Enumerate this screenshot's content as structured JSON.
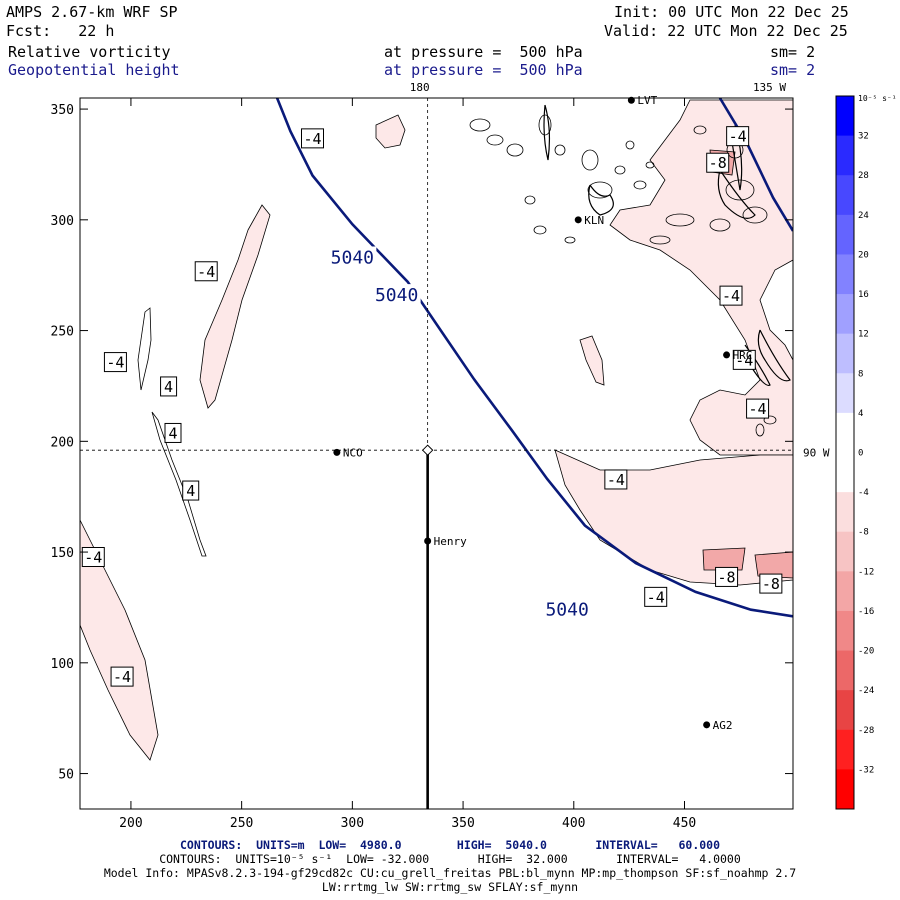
{
  "header": {
    "model": "AMPS 2.67-km WRF SP",
    "init": "Init: 00 UTC Mon 22 Dec 25",
    "forecast": "Fcst:   22 h",
    "valid": "Valid: 22 UTC Mon 22 Dec 25",
    "field1": "Relative vorticity",
    "field1_level": "at pressure =  500 hPa",
    "field1_sm": "sm= 2",
    "field2": "Geopotential height",
    "field2_level": "at pressure =  500 hPa",
    "field2_sm": "sm= 2"
  },
  "chart_data": {
    "type": "contour-map",
    "x_ticks": [
      200,
      250,
      300,
      350,
      400,
      450
    ],
    "xlim": [
      177,
      499
    ],
    "y_ticks": [
      50,
      100,
      150,
      200,
      250,
      300,
      350
    ],
    "ylim": [
      34,
      355
    ],
    "meridians": [
      {
        "label": "180",
        "x": 334
      },
      {
        "label": "135 W",
        "x": 492
      },
      {
        "label": "90 W",
        "x": 499,
        "y": 195
      }
    ],
    "crosshair": {
      "x": 334,
      "y": 196
    },
    "stations": [
      {
        "name": "NCO",
        "x": 293,
        "y": 195
      },
      {
        "name": "Henry",
        "x": 334,
        "y": 155
      },
      {
        "name": "KLN",
        "x": 402,
        "y": 300
      },
      {
        "name": "AG2",
        "x": 460,
        "y": 72
      },
      {
        "name": "LVT",
        "x": 426,
        "y": 354
      },
      {
        "name": "HRC",
        "x": 469,
        "y": 239
      }
    ],
    "height_contour": {
      "label": "5040",
      "label_positions": [
        [
          300,
          283
        ],
        [
          320,
          266
        ],
        [
          397,
          124
        ]
      ],
      "points": [
        [
          266,
          355
        ],
        [
          272,
          340
        ],
        [
          282,
          320
        ],
        [
          300,
          298
        ],
        [
          325,
          272
        ],
        [
          340,
          250
        ],
        [
          355,
          228
        ],
        [
          372,
          205
        ],
        [
          388,
          183
        ],
        [
          405,
          162
        ],
        [
          428,
          145
        ],
        [
          455,
          132
        ],
        [
          480,
          124
        ],
        [
          499,
          121
        ]
      ]
    },
    "height_contour_ne": {
      "points": [
        [
          466,
          355
        ],
        [
          478,
          335
        ],
        [
          490,
          310
        ],
        [
          499,
          295
        ]
      ]
    },
    "vorticity_labels": [
      {
        "text": "-4",
        "x": 193,
        "y": 236
      },
      {
        "text": "-4",
        "x": 234,
        "y": 277
      },
      {
        "text": "-4",
        "x": 282,
        "y": 337
      },
      {
        "text": "-4",
        "x": 183,
        "y": 148
      },
      {
        "text": "-4",
        "x": 196,
        "y": 94
      },
      {
        "text": "-4",
        "x": 419,
        "y": 183
      },
      {
        "text": "-4",
        "x": 437,
        "y": 130
      },
      {
        "text": "-4",
        "x": 471,
        "y": 266
      },
      {
        "text": "-4",
        "x": 477,
        "y": 237
      },
      {
        "text": "-4",
        "x": 483,
        "y": 215
      },
      {
        "text": "-4",
        "x": 474,
        "y": 338
      },
      {
        "text": "-8",
        "x": 465,
        "y": 326
      },
      {
        "text": "-8",
        "x": 469,
        "y": 139
      },
      {
        "text": "-8",
        "x": 489,
        "y": 136
      },
      {
        "text": "4",
        "x": 217,
        "y": 225
      },
      {
        "text": "4",
        "x": 219,
        "y": 204
      },
      {
        "text": "4",
        "x": 227,
        "y": 178
      }
    ],
    "colorbar": {
      "unit_label": "10⁻⁵ s⁻¹",
      "values": [
        32,
        28,
        24,
        20,
        16,
        12,
        8,
        4,
        0,
        -4,
        -8,
        -12,
        -16,
        -20,
        -24,
        -28,
        -32
      ],
      "colors": [
        "#0000ff",
        "#2a2aff",
        "#4848ff",
        "#6464ff",
        "#8282ff",
        "#a0a0ff",
        "#bebeff",
        "#dcdcff",
        "#ffffff",
        "#ffffff",
        "#fbdede",
        "#f7c4c4",
        "#f3a6a6",
        "#f08888",
        "#ec6868",
        "#e84444",
        "#ff2020",
        "#ff0000"
      ]
    }
  },
  "footer": {
    "line1": "CONTOURS:  UNITS=m  LOW=  4980.0        HIGH=  5040.0       INTERVAL=   60.000",
    "line2": "CONTOURS:  UNITS=10⁻⁵ s⁻¹  LOW= -32.000       HIGH=  32.000       INTERVAL=   4.0000",
    "line3": "Model Info: MPASv8.2.3-194-gf29cd82c CU:cu_grell_freitas PBL:bl_mynn MP:mp_thompson SF:sf_noahmp 2.7",
    "line4": "LW:rrtmg_lw SW:rrtmg_sw SFLAY:sf_mynn"
  },
  "colors": {
    "axis": "#000000",
    "height_line": "#0a1a7a",
    "vort_fill": "#fde8e8",
    "vort_fill_strong": "#f2a8a8"
  }
}
